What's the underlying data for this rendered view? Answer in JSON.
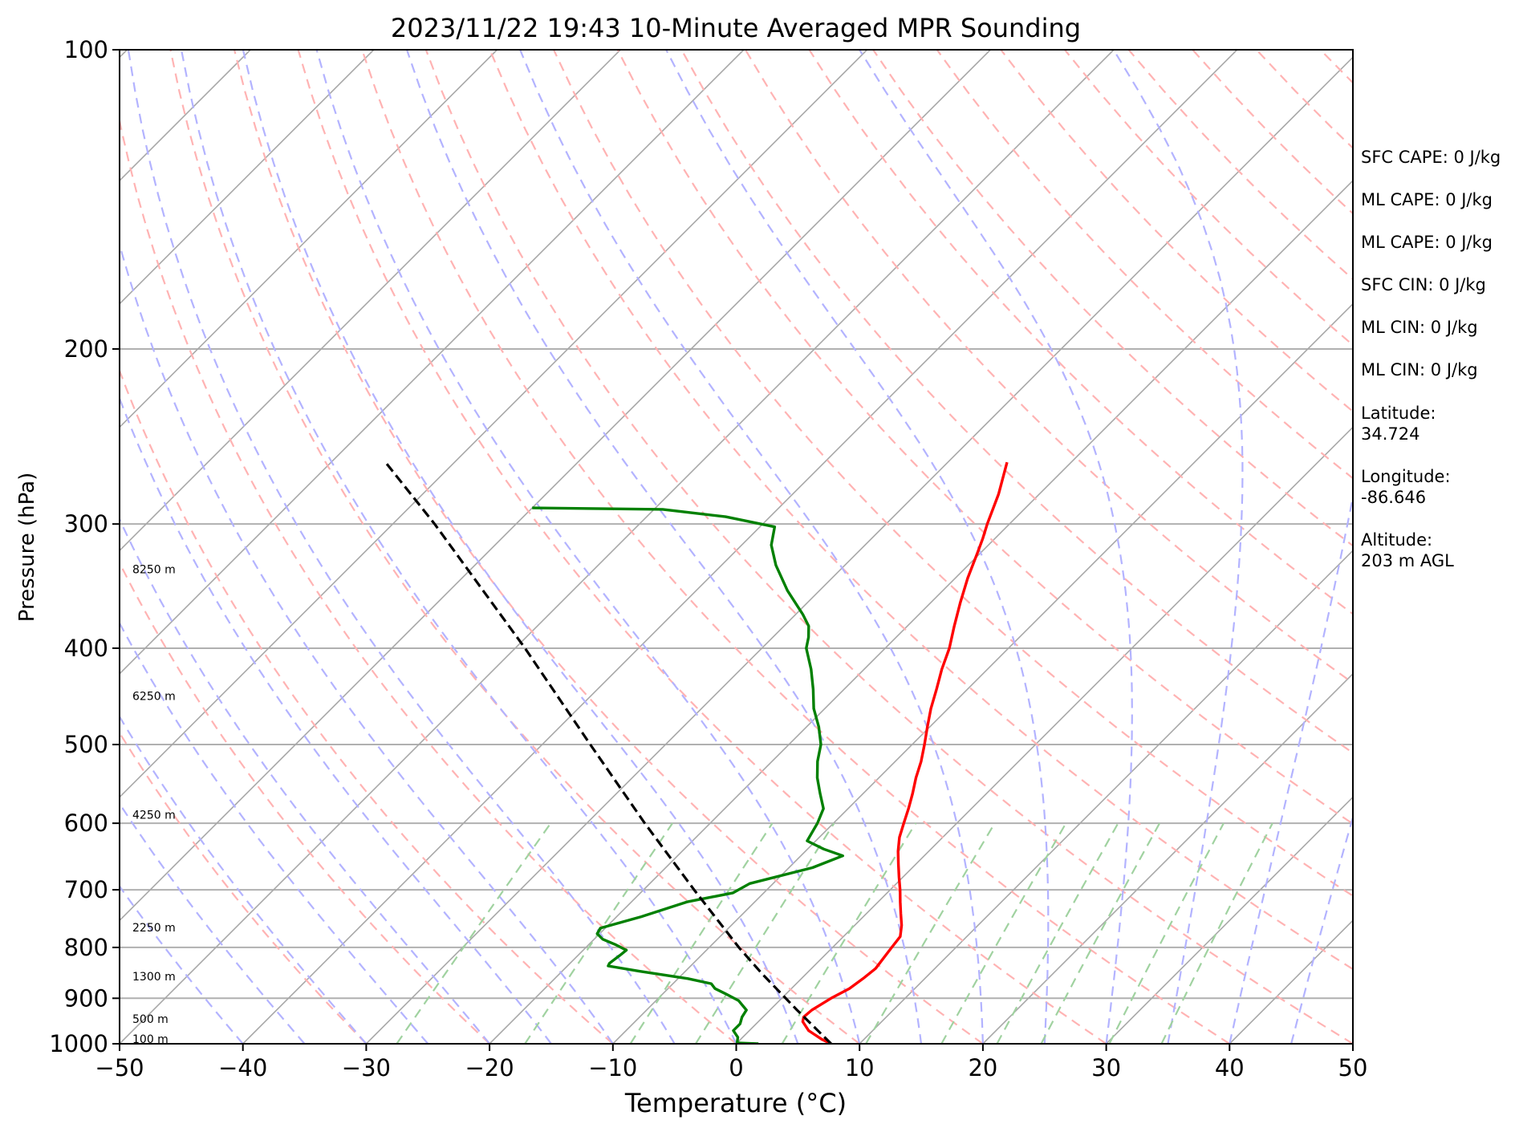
{
  "chart_data": {
    "type": "line",
    "title": "2023/11/22 19:43 10-Minute Averaged MPR Sounding",
    "xlabel": "Temperature (°C)",
    "ylabel": "Pressure (hPa)",
    "xlim": [
      -50,
      50
    ],
    "ylim": [
      1000,
      100
    ],
    "y_scale": "log",
    "x_ticks": [
      -50,
      -40,
      -30,
      -20,
      -10,
      0,
      10,
      20,
      30,
      40,
      50
    ],
    "x_tick_labels": [
      "−50",
      "−40",
      "−30",
      "−20",
      "−10",
      "0",
      "10",
      "20",
      "30",
      "40",
      "50"
    ],
    "y_ticks": [
      100,
      200,
      300,
      400,
      500,
      600,
      700,
      800,
      900,
      1000
    ],
    "y_tick_labels": [
      "100",
      "200",
      "300",
      "400",
      "500",
      "600",
      "700",
      "800",
      "900",
      "1000"
    ],
    "grid": true,
    "skew": 45,
    "series": [
      {
        "key": "temperature",
        "color": "#ff0000",
        "points": [
          [
            1000,
            7.7
          ],
          [
            990,
            6.6
          ],
          [
            970,
            4.8
          ],
          [
            950,
            3.6
          ],
          [
            940,
            3.3
          ],
          [
            925,
            3.4
          ],
          [
            900,
            4.0
          ],
          [
            880,
            4.7
          ],
          [
            860,
            5.0
          ],
          [
            840,
            5.2
          ],
          [
            820,
            5.0
          ],
          [
            800,
            4.8
          ],
          [
            780,
            4.6
          ],
          [
            760,
            3.8
          ],
          [
            740,
            2.8
          ],
          [
            720,
            1.8
          ],
          [
            700,
            0.8
          ],
          [
            680,
            -0.3
          ],
          [
            660,
            -1.4
          ],
          [
            640,
            -2.5
          ],
          [
            620,
            -3.5
          ],
          [
            600,
            -4.3
          ],
          [
            580,
            -5.1
          ],
          [
            560,
            -6.0
          ],
          [
            540,
            -7.0
          ],
          [
            520,
            -7.9
          ],
          [
            500,
            -9.0
          ],
          [
            480,
            -10.2
          ],
          [
            460,
            -11.4
          ],
          [
            440,
            -12.5
          ],
          [
            420,
            -13.7
          ],
          [
            400,
            -14.8
          ],
          [
            380,
            -16.2
          ],
          [
            360,
            -17.6
          ],
          [
            340,
            -19.0
          ],
          [
            320,
            -20.3
          ],
          [
            310,
            -21.0
          ],
          [
            300,
            -21.8
          ],
          [
            280,
            -23.3
          ],
          [
            260,
            -25.2
          ]
        ]
      },
      {
        "key": "dewpoint",
        "color": "#008000",
        "points": [
          [
            1000,
            1.8
          ],
          [
            998,
            0.0
          ],
          [
            985,
            -0.4
          ],
          [
            970,
            -1.3
          ],
          [
            955,
            -1.3
          ],
          [
            940,
            -1.7
          ],
          [
            925,
            -1.9
          ],
          [
            905,
            -3.3
          ],
          [
            890,
            -5.0
          ],
          [
            880,
            -6.2
          ],
          [
            870,
            -6.9
          ],
          [
            860,
            -9.2
          ],
          [
            845,
            -13.8
          ],
          [
            835,
            -16.7
          ],
          [
            830,
            -16.8
          ],
          [
            815,
            -16.6
          ],
          [
            805,
            -16.5
          ],
          [
            795,
            -17.8
          ],
          [
            785,
            -19.3
          ],
          [
            775,
            -20.2
          ],
          [
            765,
            -20.4
          ],
          [
            745,
            -18.0
          ],
          [
            720,
            -15.5
          ],
          [
            705,
            -12.5
          ],
          [
            690,
            -11.9
          ],
          [
            665,
            -8.1
          ],
          [
            647,
            -6.6
          ],
          [
            637,
            -8.7
          ],
          [
            625,
            -10.7
          ],
          [
            600,
            -11.3
          ],
          [
            580,
            -12.0
          ],
          [
            560,
            -13.5
          ],
          [
            540,
            -15.0
          ],
          [
            520,
            -16.3
          ],
          [
            500,
            -17.4
          ],
          [
            480,
            -19.0
          ],
          [
            460,
            -20.9
          ],
          [
            440,
            -22.5
          ],
          [
            420,
            -24.3
          ],
          [
            400,
            -26.4
          ],
          [
            390,
            -27.1
          ],
          [
            380,
            -28.0
          ],
          [
            370,
            -29.4
          ],
          [
            350,
            -32.6
          ],
          [
            330,
            -35.6
          ],
          [
            315,
            -37.6
          ],
          [
            302,
            -38.8
          ],
          [
            295,
            -43.6
          ],
          [
            290,
            -49.3
          ],
          [
            289,
            -60.0
          ]
        ]
      },
      {
        "key": "parcel",
        "color": "#000000",
        "dashed": true,
        "points": [
          [
            1000,
            7.7
          ],
          [
            925,
            2.2
          ],
          [
            850,
            -3.6
          ],
          [
            800,
            -7.6
          ],
          [
            700,
            -15.9
          ],
          [
            600,
            -25.3
          ],
          [
            500,
            -36.1
          ],
          [
            400,
            -49.2
          ],
          [
            300,
            -66.6
          ],
          [
            260,
            -75.6
          ]
        ]
      }
    ],
    "reference_lines": {
      "dry_adiabats_color": "#ffb3b3",
      "moist_adiabats_color": "#b3b3ff",
      "mixing_ratio_color": "#a0d2a0",
      "isotherm_color": "#a8a8a8"
    },
    "height_labels": [
      {
        "text": "100 m",
        "pressure": 1000
      },
      {
        "text": "500 m",
        "pressure": 955
      },
      {
        "text": "1300 m",
        "pressure": 865
      },
      {
        "text": "2250 m",
        "pressure": 772
      },
      {
        "text": "4250 m",
        "pressure": 595
      },
      {
        "text": "6250 m",
        "pressure": 452
      },
      {
        "text": "8250 m",
        "pressure": 337
      }
    ],
    "annotations": [
      "SFC CAPE: 0 J/kg",
      "ML CAPE: 0 J/kg",
      "ML CAPE: 0 J/kg",
      "SFC CIN: 0 J/kg",
      "ML CIN: 0 J/kg",
      "ML CIN: 0 J/kg",
      "Latitude:",
      "34.724",
      "Longitude:",
      "-86.646",
      "Altitude:",
      "203 m AGL"
    ]
  }
}
